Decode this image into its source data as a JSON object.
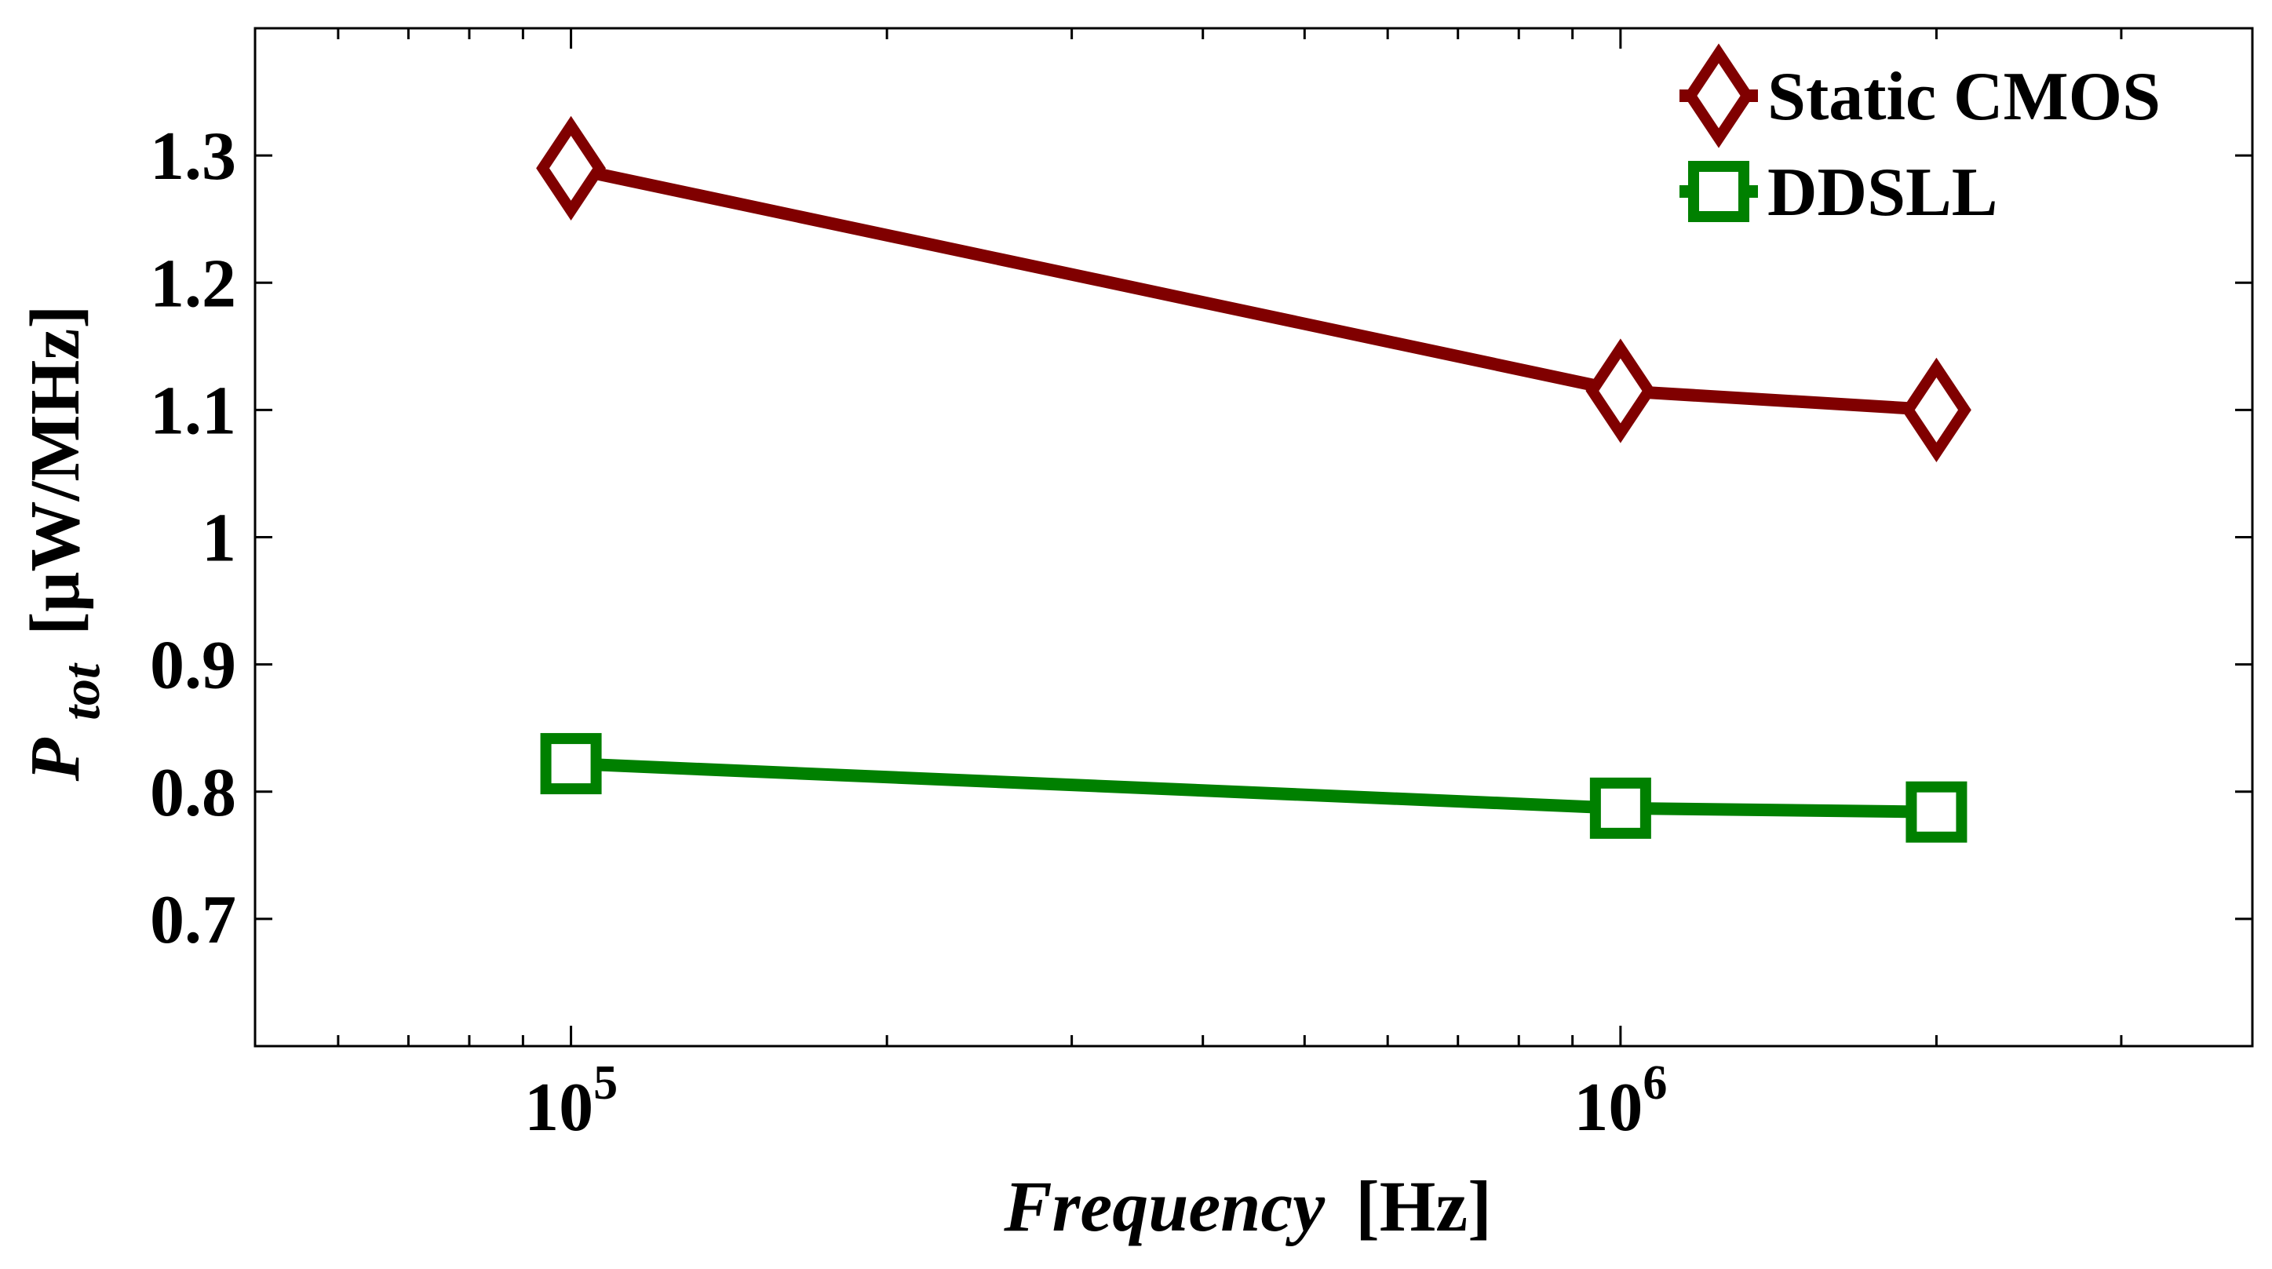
{
  "chart_data": {
    "type": "line",
    "x_scale": "log",
    "xlim": [
      50000,
      4000000
    ],
    "ylim": [
      0.6,
      1.4
    ],
    "y_ticks": [
      "0.7",
      "0.8",
      "0.9",
      "1",
      "1.1",
      "1.2",
      "1.3"
    ],
    "x_ticks": [
      {
        "value": 100000,
        "base": "10",
        "exp": "5"
      },
      {
        "value": 1000000,
        "base": "10",
        "exp": "6"
      }
    ],
    "xlabel": {
      "italic": "Frequency",
      "rest": "[Hz]"
    },
    "ylabel": {
      "symbol": "P",
      "subscript": "tot",
      "rest": "[μW/MHz]"
    },
    "grid": false,
    "legend_position": "top-right",
    "series": [
      {
        "name": "Static CMOS",
        "color": "#800000",
        "marker": "diamond",
        "x": [
          100000,
          1000000,
          2000000
        ],
        "values": [
          1.29,
          1.115,
          1.1
        ]
      },
      {
        "name": "DDSLL",
        "color": "#008000",
        "marker": "square",
        "x": [
          100000,
          1000000,
          2000000
        ],
        "values": [
          0.822,
          0.787,
          0.784
        ]
      }
    ]
  }
}
